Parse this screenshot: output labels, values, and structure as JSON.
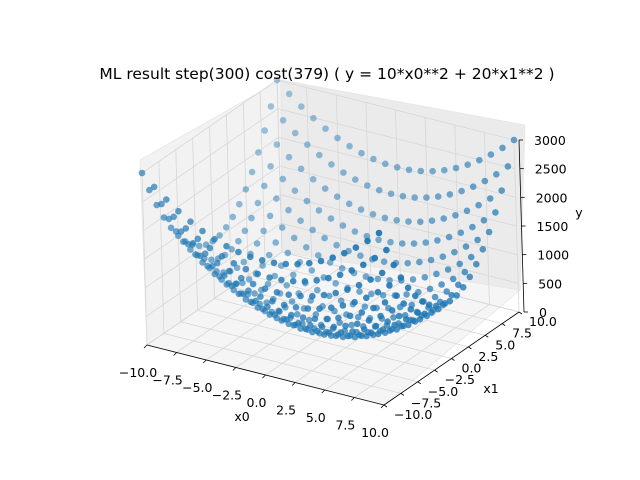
{
  "chart_data": {
    "type": "scatter",
    "subtype": "3d-scatter",
    "title": "ML result step(300) cost(379) ( y = 10*x0**2 + 20*x1**2 )",
    "xlabel": "x0",
    "ylabel": "x1",
    "zlabel": "y",
    "x_ticks": [
      "−10.0",
      "−7.5",
      "−5.0",
      "−2.5",
      "0.0",
      "2.5",
      "5.0",
      "7.5",
      "10.0"
    ],
    "y_ticks": [
      "−10.0",
      "−7.5",
      "−5.0",
      "−2.5",
      "0.0",
      "2.5",
      "5.0",
      "7.5",
      "10.0"
    ],
    "z_ticks": [
      "0",
      "500",
      "1000",
      "1500",
      "2000",
      "2500",
      "3000"
    ],
    "xlim": [
      -10,
      10
    ],
    "ylim": [
      -10,
      10
    ],
    "zlim": [
      0,
      3000
    ],
    "grid": {
      "x0": [
        -10,
        -9,
        -8,
        -7,
        -6,
        -5,
        -4,
        -3,
        -2,
        -1,
        0,
        1,
        2,
        3,
        4,
        5,
        6,
        7,
        8,
        9,
        10
      ],
      "x1": [
        -10,
        -9,
        -8,
        -7,
        -6,
        -5,
        -4,
        -3,
        -2,
        -1,
        0,
        1,
        2,
        3,
        4,
        5,
        6,
        7,
        8,
        9,
        10
      ]
    },
    "model": {
      "a": 10,
      "b": 20
    },
    "marker_color": "#1f77b4",
    "grid_on": true
  }
}
